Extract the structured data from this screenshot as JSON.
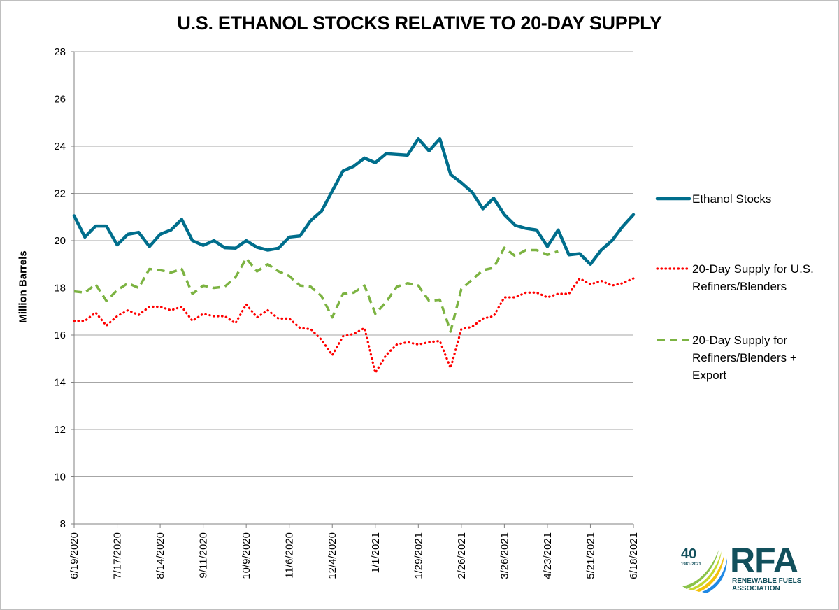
{
  "chart_data": {
    "type": "line",
    "title": "U.S. ETHANOL STOCKS RELATIVE TO 20-DAY SUPPLY",
    "xlabel": "",
    "ylabel": "Million Barrels",
    "ylim": [
      8,
      28
    ],
    "y_ticks": [
      "8",
      "10",
      "12",
      "14",
      "16",
      "18",
      "20",
      "22",
      "24",
      "26",
      "28"
    ],
    "x_tick_labels": [
      "6/19/2020",
      "7/17/2020",
      "8/14/2020",
      "9/11/2020",
      "10/9/2020",
      "11/6/2020",
      "12/4/2020",
      "1/1/2021",
      "1/29/2021",
      "2/26/2021",
      "3/26/2021",
      "4/23/2021",
      "5/21/2021",
      "6/18/2021"
    ],
    "x_range": [
      "6/19/2020",
      "6/18/2021"
    ],
    "x_interval": "weekly",
    "grid": "horizontal",
    "legend_position": "right",
    "series": [
      {
        "name": "Ethanol Stocks",
        "color": "#006E8C",
        "style": "solid",
        "values": [
          21.05,
          20.15,
          20.62,
          20.62,
          19.82,
          20.27,
          20.35,
          19.75,
          20.27,
          20.45,
          20.9,
          20.0,
          19.8,
          20.0,
          19.7,
          19.68,
          20.0,
          19.72,
          19.6,
          19.68,
          20.15,
          20.2,
          20.85,
          21.25,
          22.1,
          22.95,
          23.15,
          23.5,
          23.3,
          23.68,
          23.65,
          23.62,
          24.32,
          23.8,
          24.32,
          22.8,
          22.45,
          22.05,
          21.35,
          21.8,
          21.1,
          20.65,
          20.52,
          20.45,
          19.75,
          20.45,
          19.4,
          19.45,
          19.0,
          19.6,
          20.0,
          20.6,
          21.1
        ]
      },
      {
        "name": "20-Day Supply for U.S. Refiners/Blenders",
        "color": "#FF0000",
        "style": "dotted",
        "values": [
          16.6,
          16.6,
          16.95,
          16.4,
          16.8,
          17.05,
          16.85,
          17.2,
          17.2,
          17.05,
          17.2,
          16.6,
          16.9,
          16.8,
          16.8,
          16.5,
          17.3,
          16.75,
          17.05,
          16.7,
          16.7,
          16.3,
          16.25,
          15.8,
          15.15,
          15.95,
          16.05,
          16.3,
          14.4,
          15.15,
          15.6,
          15.7,
          15.6,
          15.7,
          15.75,
          14.6,
          16.25,
          16.35,
          16.7,
          16.8,
          17.6,
          17.6,
          17.8,
          17.8,
          17.6,
          17.75,
          17.75,
          18.4,
          18.15,
          18.3,
          18.1,
          18.2,
          18.4
        ]
      },
      {
        "name": "20-Day Supply for Refiners/Blenders + Export",
        "color": "#7CB342",
        "style": "dashed",
        "values": [
          17.85,
          17.8,
          18.15,
          17.45,
          17.9,
          18.2,
          18.0,
          18.8,
          18.75,
          18.65,
          18.8,
          17.75,
          18.1,
          18.0,
          18.05,
          18.45,
          19.25,
          18.7,
          19.0,
          18.7,
          18.5,
          18.1,
          18.05,
          17.65,
          16.75,
          17.75,
          17.8,
          18.1,
          16.9,
          17.4,
          18.05,
          18.2,
          18.1,
          17.45,
          17.5,
          16.15,
          17.95,
          18.35,
          18.75,
          18.85,
          19.7,
          19.35,
          19.6,
          19.6,
          19.4,
          19.55
        ]
      }
    ],
    "legend": [
      {
        "lines": [
          "Ethanol Stocks"
        ]
      },
      {
        "lines": [
          "20-Day Supply for U.S.",
          "Refiners/Blenders"
        ]
      },
      {
        "lines": [
          "20-Day Supply for",
          "Refiners/Blenders +",
          "Export"
        ]
      }
    ]
  },
  "logo": {
    "anniversary_number": "40",
    "anniversary_years": "1981-2021",
    "brand": "RFA",
    "tagline_line1": "RENEWABLE FUELS",
    "tagline_line2": "ASSOCIATION",
    "brand_color": "#12505C"
  }
}
